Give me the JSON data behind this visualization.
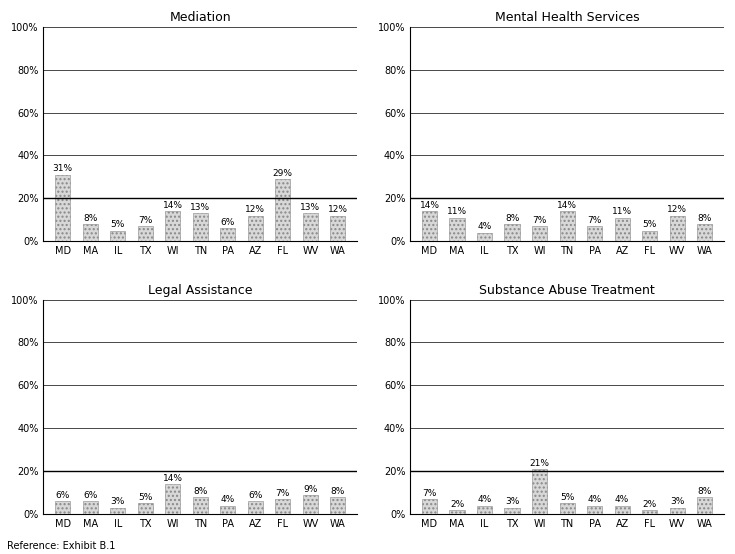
{
  "categories": [
    "MD",
    "MA",
    "IL",
    "TX",
    "WI",
    "TN",
    "PA",
    "AZ",
    "FL",
    "WV",
    "WA"
  ],
  "charts": [
    {
      "title": "Mediation",
      "values": [
        31,
        8,
        5,
        7,
        14,
        13,
        6,
        12,
        29,
        13,
        12
      ],
      "highlight_line": 20
    },
    {
      "title": "Mental Health Services",
      "values": [
        14,
        11,
        4,
        8,
        7,
        14,
        7,
        11,
        5,
        12,
        8
      ],
      "highlight_line": 20
    },
    {
      "title": "Legal Assistance",
      "values": [
        6,
        6,
        3,
        5,
        14,
        8,
        4,
        6,
        7,
        9,
        8
      ],
      "highlight_line": 20
    },
    {
      "title": "Substance Abuse Treatment",
      "values": [
        7,
        2,
        4,
        3,
        21,
        5,
        4,
        4,
        2,
        3,
        8
      ],
      "highlight_line": 20
    }
  ],
  "bar_facecolor": "#d8d8d8",
  "bar_hatch": "....",
  "bar_edgecolor": "#888888",
  "bar_linewidth": 0.4,
  "bar_width": 0.55,
  "background_color": "#ffffff",
  "title_fontsize": 9,
  "title_fontweight": "normal",
  "tick_fontsize": 7,
  "label_fontsize": 6.5,
  "reference_text": "Reference: Exhibit B.1",
  "ylim": [
    0,
    100
  ],
  "yticks": [
    0,
    20,
    40,
    60,
    80,
    100
  ],
  "ytick_labels": [
    "0%",
    "20%",
    "40%",
    "60%",
    "80%",
    "100%"
  ],
  "grid_color": "#000000",
  "grid_linewidth": 0.5,
  "grid_linestyle": "-",
  "highlight_linecolor": "#000000",
  "highlight_linewidth": 1.0,
  "spine_color": "#000000",
  "spine_linewidth": 0.8
}
